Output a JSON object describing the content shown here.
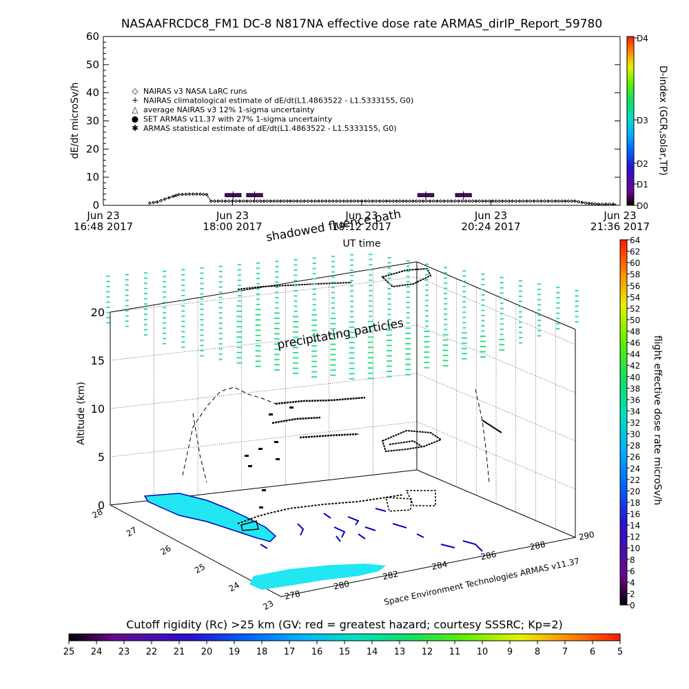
{
  "chart_data": [
    {
      "type": "line",
      "title": "NASAAFRCDC8_FM1 DC-8   N817NA effective dose rate ARMAS_dirIP_Report_59780",
      "ylabel": "dE/dt microSv/h",
      "xlabel": "UT time",
      "ylim": [
        0,
        60
      ],
      "yticks": [
        "0",
        "10",
        "20",
        "30",
        "40",
        "50",
        "60"
      ],
      "xlim_hours": [
        16.8,
        21.6
      ],
      "xticks": [
        {
          "t": 16.8,
          "line1": "Jun 23",
          "line2": "16:48 2017"
        },
        {
          "t": 18.0,
          "line1": "Jun 23",
          "line2": "18:00 2017"
        },
        {
          "t": 19.2,
          "line1": "Jun 23",
          "line2": "19:12 2017"
        },
        {
          "t": 20.4,
          "line1": "Jun 23",
          "line2": "20:24 2017"
        },
        {
          "t": 21.6,
          "line1": "Jun 23",
          "line2": "21:36 2017"
        }
      ],
      "legend": [
        {
          "marker": "◇",
          "text": "NAIRAS v3 NASA LaRC runs"
        },
        {
          "marker": "+",
          "text": "NAIRAS climatological estimate of dE/dt(L1.4863522 - L1.5333155, G0)"
        },
        {
          "marker": "△",
          "text": "average NAIRAS v3 12% 1-sigma uncertainty"
        },
        {
          "marker": "●",
          "text": "SET ARMAS v11.37 with 27% 1-sigma uncertainty",
          "color": "#1a1aff"
        },
        {
          "marker": "✱",
          "text": "ARMAS statistical estimate of dE/dt(L1.4863522 - L1.5333155, G0)"
        }
      ],
      "nairas_series": [
        [
          17.23,
          0.8
        ],
        [
          17.3,
          1.2
        ],
        [
          17.37,
          2.2
        ],
        [
          17.45,
          3.2
        ],
        [
          17.5,
          3.8
        ],
        [
          17.6,
          4.0
        ],
        [
          17.7,
          4.0
        ],
        [
          17.76,
          3.8
        ],
        [
          17.8,
          1.5
        ],
        [
          18.2,
          1.5
        ],
        [
          18.6,
          1.5
        ],
        [
          19.0,
          1.5
        ],
        [
          19.4,
          1.5
        ],
        [
          19.8,
          1.5
        ],
        [
          20.2,
          1.5
        ],
        [
          20.6,
          1.5
        ],
        [
          21.0,
          1.5
        ],
        [
          21.18,
          1.5
        ],
        [
          21.28,
          0.8
        ],
        [
          21.4,
          0.4
        ],
        [
          21.57,
          0.4
        ]
      ],
      "armas_boxes": [
        {
          "t0": 17.93,
          "t1": 18.08,
          "y": 3.5
        },
        {
          "t0": 18.13,
          "t1": 18.28,
          "y": 3.5
        },
        {
          "t0": 19.72,
          "t1": 19.87,
          "y": 3.5
        },
        {
          "t0": 20.07,
          "t1": 20.22,
          "y": 3.5
        }
      ],
      "right_axis": {
        "label": "D-index (GCR,solar,TP)",
        "ticks": [
          "D0",
          "D1",
          "D2",
          "D3",
          "D4"
        ],
        "tick_values": [
          0,
          1,
          2,
          3,
          4
        ]
      }
    },
    {
      "type": "scatter",
      "subtype": "3d-flight-track",
      "zlabel": "Altitude (km)",
      "zticks": [
        "0",
        "5",
        "10",
        "15",
        "20"
      ],
      "lat_ticks": [
        "28",
        "27",
        "26",
        "25",
        "24",
        "23"
      ],
      "lon_ticks": [
        "278",
        "280",
        "282",
        "284",
        "286",
        "288",
        "290"
      ],
      "annotations": [
        "shadowed fluence path",
        "precipitating particles"
      ],
      "credit": "Space Environment Technologies ARMAS v11.37",
      "right_colorbar": {
        "label": "flight effective dose rate microSv/h",
        "range": [
          0,
          64
        ],
        "ticks": [
          "0",
          "2",
          "4",
          "6",
          "8",
          "10",
          "12",
          "14",
          "16",
          "18",
          "20",
          "22",
          "24",
          "26",
          "28",
          "30",
          "32",
          "34",
          "36",
          "38",
          "40",
          "42",
          "44",
          "46",
          "48",
          "50",
          "52",
          "54",
          "56",
          "58",
          "60",
          "62",
          "64"
        ]
      },
      "bottom_colorbar": {
        "label": "Cutoff rigidity (Rc) >25 km (GV: red = greatest hazard; courtesy SSSRC; Kp=2)",
        "ticks": [
          "25",
          "24",
          "23",
          "22",
          "21",
          "20",
          "19",
          "18",
          "17",
          "16",
          "15",
          "14",
          "13",
          "12",
          "11",
          "10",
          "9",
          "8",
          "7",
          "6",
          "5"
        ]
      }
    }
  ],
  "colors": {
    "land_fill": "#22e6f2",
    "coast_line": "#0000c8",
    "particles": "#2ee08a",
    "armas_box": "#4a0a6e"
  }
}
